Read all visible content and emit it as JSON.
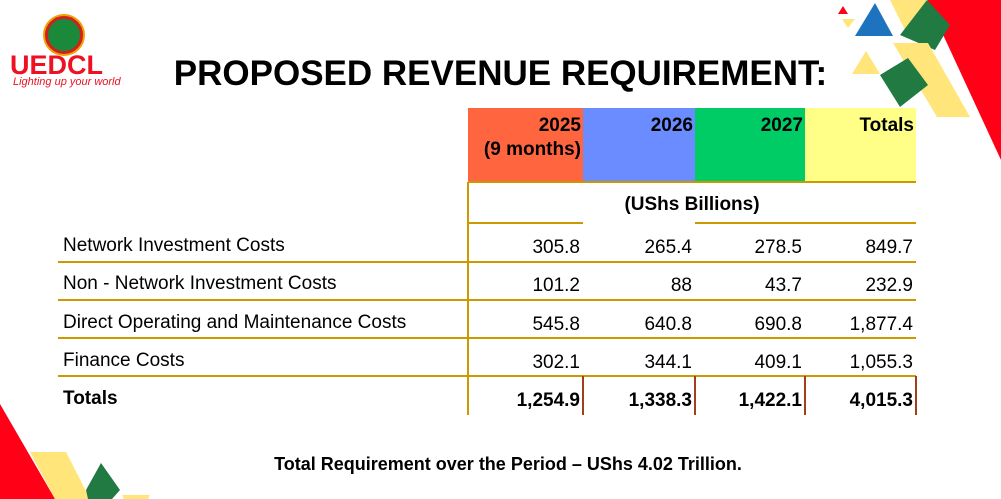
{
  "logo": {
    "name": "UEDCL",
    "tagline": "Lighting up your world"
  },
  "title": "PROPOSED REVENUE REQUIREMENT:",
  "table": {
    "columns": [
      {
        "line1": "2025",
        "line2": "(9 months)",
        "color": "#ff6640"
      },
      {
        "line1": "2026",
        "line2": "",
        "color": "#6b8cff"
      },
      {
        "line1": "2027",
        "line2": "",
        "color": "#00cc66"
      },
      {
        "line1": "Totals",
        "line2": "",
        "color": "#ffff88"
      }
    ],
    "units": "(UShs Billions)",
    "rows": [
      {
        "label": "Network Investment Costs",
        "values": [
          "305.8",
          "265.4",
          "278.5",
          "849.7"
        ]
      },
      {
        "label": "Non - Network Investment Costs",
        "values": [
          "101.2",
          "88",
          "43.7",
          "232.9"
        ]
      },
      {
        "label": "Direct Operating and Maintenance Costs",
        "values": [
          "545.8",
          "640.8",
          "690.8",
          "1,877.4"
        ]
      },
      {
        "label": "Finance Costs",
        "values": [
          "302.1",
          "344.1",
          "409.1",
          "1,055.3"
        ]
      }
    ],
    "totals": {
      "label": "Totals",
      "values": [
        "1,254.9",
        "1,338.3",
        "1,422.1",
        "4,015.3"
      ]
    }
  },
  "footer": "Total Requirement over the Period – UShs 4.02 Trillion.",
  "colors": {
    "line": "#cc9900",
    "red": "#ff0016",
    "green": "#217a42",
    "yellow": "#ffe57a",
    "blue": "#1e73be"
  }
}
